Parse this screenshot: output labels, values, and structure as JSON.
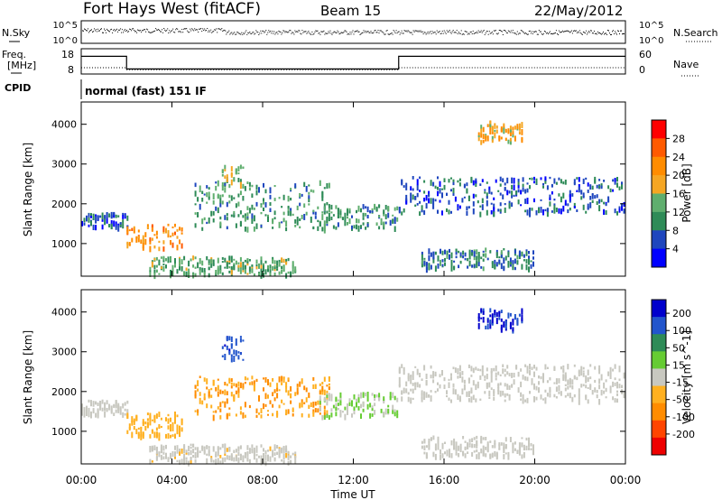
{
  "header": {
    "station": "Fort Hays West (fitACF)",
    "beam": "Beam 15",
    "date": "22/May/2012"
  },
  "noise_panel": {
    "left_label": "N.Sky",
    "left_ticks": [
      "10^5",
      "10^0"
    ],
    "right_label": "N.Search",
    "right_ticks": [
      "10^5",
      "10^0"
    ]
  },
  "freq_panel": {
    "left_label_1": "Freq.",
    "left_label_2": "[MHz]",
    "left_ticks": [
      "18",
      "8"
    ],
    "right_label": "Nave",
    "right_ticks": [
      "60",
      "0"
    ],
    "cpid_label": "CPID",
    "cpid_text": "normal (fast) 151 IF"
  },
  "colors": {
    "power_scale": [
      "#0000ff",
      "#1e46be",
      "#2e8b57",
      "#5fae6e",
      "#f5a623",
      "#ff8c00",
      "#ff5a00",
      "#ff0000"
    ],
    "velocity_scale": [
      "#0000cc",
      "#2255cc",
      "#2e8b57",
      "#66cc33",
      "#c8c8c0",
      "#ffb020",
      "#ff8c00",
      "#ff4500",
      "#ee0000"
    ]
  },
  "chart_data": [
    {
      "type": "heatmap",
      "panel": "power",
      "ylabel": "Slant Range [km]",
      "yticks": [
        "1000",
        "2000",
        "3000",
        "4000"
      ],
      "ylim": [
        180,
        4560
      ],
      "xlim_hours": [
        0,
        24
      ],
      "xticks": [
        "00:00",
        "04:00",
        "08:00",
        "12:00",
        "16:00",
        "20:00",
        "00:00"
      ],
      "colorbar_label": "Power [dB]",
      "colorbar_ticks": [
        "4",
        "8",
        "12",
        "16",
        "20",
        "24",
        "28"
      ],
      "colorbar_range": [
        0,
        30
      ],
      "regions": [
        {
          "t0": 0.0,
          "t1": 2.1,
          "r0": 1450,
          "r1": 1800,
          "level": 6
        },
        {
          "t0": 2.0,
          "t1": 4.5,
          "r0": 900,
          "r1": 1500,
          "level": 20
        },
        {
          "t0": 3.0,
          "t1": 9.5,
          "r0": 250,
          "r1": 700,
          "level": 12
        },
        {
          "t0": 5.0,
          "t1": 11.0,
          "r0": 1400,
          "r1": 2600,
          "level": 10
        },
        {
          "t0": 6.2,
          "t1": 7.2,
          "r0": 2400,
          "r1": 3000,
          "level": 14
        },
        {
          "t0": 10.5,
          "t1": 14.0,
          "r0": 1400,
          "r1": 2000,
          "level": 10
        },
        {
          "t0": 14.0,
          "t1": 24.0,
          "r0": 1800,
          "r1": 2700,
          "level": 6
        },
        {
          "t0": 15.0,
          "t1": 20.0,
          "r0": 400,
          "r1": 900,
          "level": 8
        },
        {
          "t0": 17.5,
          "t1": 19.5,
          "r0": 3600,
          "r1": 4100,
          "level": 18
        }
      ]
    },
    {
      "type": "heatmap",
      "panel": "velocity",
      "ylabel": "Slant Range [km]",
      "yticks": [
        "1000",
        "2000",
        "3000",
        "4000"
      ],
      "ylim": [
        180,
        4560
      ],
      "xlim_hours": [
        0,
        24
      ],
      "xticks": [
        "00:00",
        "04:00",
        "08:00",
        "12:00",
        "16:00",
        "20:00",
        "00:00"
      ],
      "xlabel": "Time UT",
      "colorbar_label": "Velocity [m s^-1]",
      "colorbar_ticks": [
        "200",
        "100",
        "50",
        "15",
        "-15",
        "-50",
        "-100",
        "-200"
      ],
      "colorbar_range": [
        -250,
        250
      ],
      "regions": [
        {
          "t0": 0.0,
          "t1": 2.1,
          "r0": 1450,
          "r1": 1800,
          "level": 0
        },
        {
          "t0": 2.0,
          "t1": 4.5,
          "r0": 900,
          "r1": 1500,
          "level": -60
        },
        {
          "t0": 3.0,
          "t1": 9.5,
          "r0": 250,
          "r1": 700,
          "level": -10
        },
        {
          "t0": 5.0,
          "t1": 11.0,
          "r0": 1400,
          "r1": 2400,
          "level": -80
        },
        {
          "t0": 6.2,
          "t1": 7.2,
          "r0": 2800,
          "r1": 3400,
          "level": 180
        },
        {
          "t0": 10.5,
          "t1": 14.0,
          "r0": 1400,
          "r1": 2000,
          "level": 30
        },
        {
          "t0": 14.0,
          "t1": 24.0,
          "r0": 1800,
          "r1": 2700,
          "level": 5
        },
        {
          "t0": 15.0,
          "t1": 20.0,
          "r0": 400,
          "r1": 900,
          "level": 0
        },
        {
          "t0": 17.5,
          "t1": 19.5,
          "r0": 3600,
          "r1": 4100,
          "level": 200
        }
      ]
    }
  ],
  "freq_trace": {
    "high_mhz": 15,
    "low_mhz": 10,
    "switch_down_hour": 2.0,
    "switch_up_hour": 14.0
  },
  "nave_trace": {
    "high": 15,
    "low": 10
  }
}
